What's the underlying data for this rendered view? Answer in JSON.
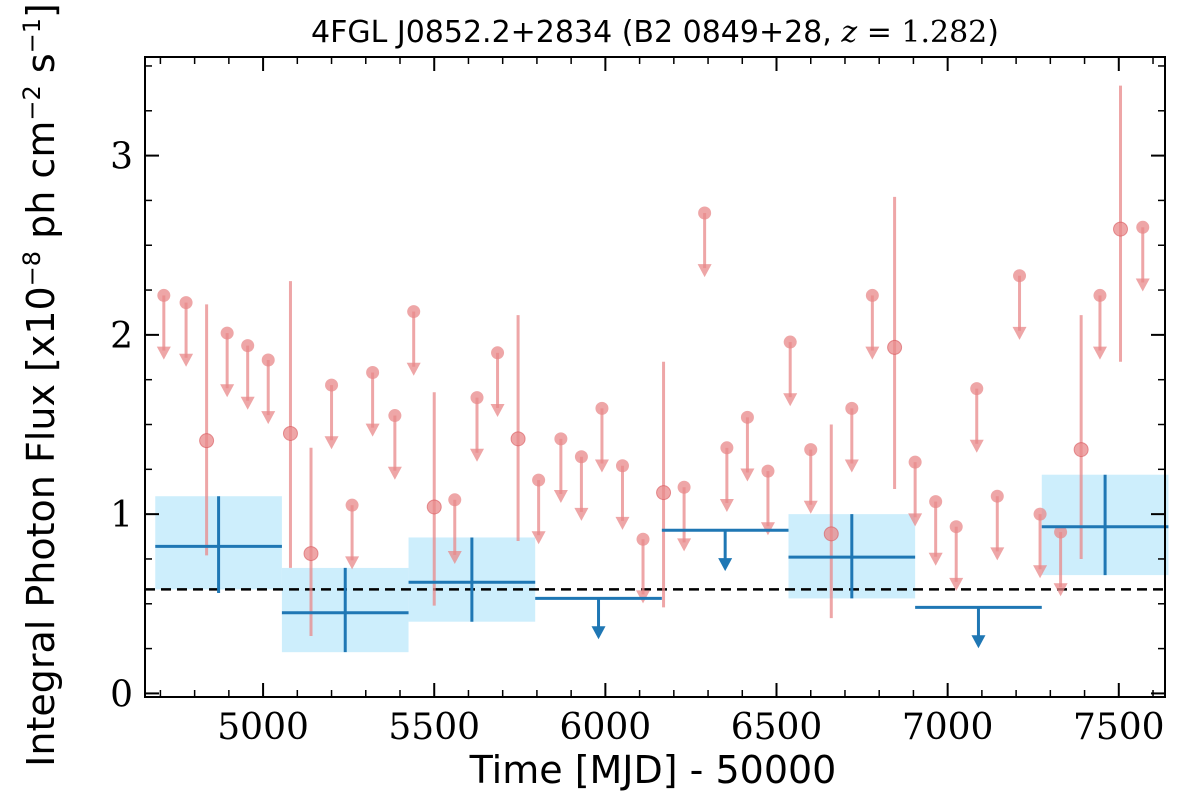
{
  "chart_data": {
    "type": "scatter",
    "title": "4FGL J0852.2+2834 (B2 0849+28, z = 1.282)",
    "title_parts": {
      "prefix": "4FGL J0852.2+2834 (B2 0849+28, ",
      "z_symbol": "z",
      "z_value": " = 1.282",
      "suffix": ")"
    },
    "xlabel": "Time [MJD] - 50000",
    "ylabel": "Integral Photon Flux [x10",
    "ylabel_exponent": "−8",
    "ylabel_mid": " ph cm",
    "ylabel_exponent2": "−2",
    "ylabel_end": " s",
    "ylabel_exponent3": "−1",
    "ylabel_close": "]",
    "xlim": [
      4655,
      7635
    ],
    "ylim": [
      -0.02,
      3.55
    ],
    "x_ticks": [
      5000,
      5500,
      6000,
      6500,
      7000,
      7500
    ],
    "x_minor_step": 100,
    "y_ticks": [
      0,
      1,
      2,
      3
    ],
    "y_minor_step": 0.25,
    "grid": false,
    "reference_line": 0.58,
    "colors": {
      "fine_bins": "#e8888a",
      "coarse_bins": "#1f77b4",
      "coarse_band": "#cdeefc",
      "reference_line": "#000000"
    },
    "series": [
      {
        "kind": "fine_bins_detections",
        "points": [
          {
            "x": 4835,
            "y": 1.41,
            "yerr_low": 0.77,
            "yerr_high": 2.17
          },
          {
            "x": 5080,
            "y": 1.45,
            "yerr_low": 0.7,
            "yerr_high": 2.3
          },
          {
            "x": 5140,
            "y": 0.78,
            "yerr_low": 0.32,
            "yerr_high": 1.37
          },
          {
            "x": 5500,
            "y": 1.04,
            "yerr_low": 0.49,
            "yerr_high": 1.68
          },
          {
            "x": 5745,
            "y": 1.42,
            "yerr_low": 0.85,
            "yerr_high": 2.11
          },
          {
            "x": 6170,
            "y": 1.12,
            "yerr_low": 0.48,
            "yerr_high": 1.85
          },
          {
            "x": 6660,
            "y": 0.89,
            "yerr_low": 0.42,
            "yerr_high": 1.5
          },
          {
            "x": 6845,
            "y": 1.93,
            "yerr_low": 1.14,
            "yerr_high": 2.77
          },
          {
            "x": 7390,
            "y": 1.36,
            "yerr_low": 0.75,
            "yerr_high": 2.11
          },
          {
            "x": 7505,
            "y": 2.59,
            "yerr_low": 1.85,
            "yerr_high": 3.39
          }
        ]
      },
      {
        "kind": "fine_bins_upper_limits",
        "points": [
          {
            "x": 4710,
            "y": 2.22
          },
          {
            "x": 4775,
            "y": 2.18
          },
          {
            "x": 4895,
            "y": 2.01
          },
          {
            "x": 4955,
            "y": 1.94
          },
          {
            "x": 5015,
            "y": 1.86
          },
          {
            "x": 5200,
            "y": 1.72
          },
          {
            "x": 5260,
            "y": 1.05
          },
          {
            "x": 5320,
            "y": 1.79
          },
          {
            "x": 5385,
            "y": 1.55
          },
          {
            "x": 5440,
            "y": 2.13
          },
          {
            "x": 5560,
            "y": 1.08
          },
          {
            "x": 5625,
            "y": 1.65
          },
          {
            "x": 5685,
            "y": 1.9
          },
          {
            "x": 5805,
            "y": 1.19
          },
          {
            "x": 5870,
            "y": 1.42
          },
          {
            "x": 5930,
            "y": 1.32
          },
          {
            "x": 5990,
            "y": 1.59
          },
          {
            "x": 6050,
            "y": 1.27
          },
          {
            "x": 6110,
            "y": 0.86
          },
          {
            "x": 6230,
            "y": 1.15
          },
          {
            "x": 6290,
            "y": 2.68
          },
          {
            "x": 6355,
            "y": 1.37
          },
          {
            "x": 6415,
            "y": 1.54
          },
          {
            "x": 6475,
            "y": 1.24
          },
          {
            "x": 6540,
            "y": 1.96
          },
          {
            "x": 6600,
            "y": 1.36
          },
          {
            "x": 6720,
            "y": 1.59
          },
          {
            "x": 6780,
            "y": 2.22
          },
          {
            "x": 6905,
            "y": 1.29
          },
          {
            "x": 6965,
            "y": 1.07
          },
          {
            "x": 7025,
            "y": 0.93
          },
          {
            "x": 7085,
            "y": 1.7
          },
          {
            "x": 7145,
            "y": 1.1
          },
          {
            "x": 7210,
            "y": 2.33
          },
          {
            "x": 7270,
            "y": 1.0
          },
          {
            "x": 7330,
            "y": 0.9
          },
          {
            "x": 7445,
            "y": 2.22
          },
          {
            "x": 7570,
            "y": 2.6
          }
        ]
      },
      {
        "kind": "coarse_bins_detections",
        "points": [
          {
            "x": 4870,
            "x_low": 4685,
            "x_high": 5055,
            "y": 0.82,
            "y_low": 0.56,
            "y_high": 1.1,
            "band_low": 0.58,
            "band_high": 1.1
          },
          {
            "x": 5240,
            "x_low": 5055,
            "x_high": 5425,
            "y": 0.45,
            "y_low": 0.23,
            "y_high": 0.7,
            "band_low": 0.23,
            "band_high": 0.7
          },
          {
            "x": 5610,
            "x_low": 5425,
            "x_high": 5795,
            "y": 0.62,
            "y_low": 0.4,
            "y_high": 0.87,
            "band_low": 0.4,
            "band_high": 0.87
          },
          {
            "x": 6720,
            "x_low": 6535,
            "x_high": 6905,
            "y": 0.76,
            "y_low": 0.53,
            "y_high": 1.0,
            "band_low": 0.53,
            "band_high": 1.0
          },
          {
            "x": 7460,
            "x_low": 7275,
            "x_high": 7645,
            "y": 0.93,
            "y_low": 0.66,
            "y_high": 1.22,
            "band_low": 0.66,
            "band_high": 1.22
          }
        ]
      },
      {
        "kind": "coarse_bins_upper_limits",
        "points": [
          {
            "x": 5980,
            "x_low": 5795,
            "x_high": 6165,
            "y": 0.53
          },
          {
            "x": 6350,
            "x_low": 6165,
            "x_high": 6535,
            "y": 0.91
          },
          {
            "x": 7090,
            "x_low": 6905,
            "x_high": 7275,
            "y": 0.48
          }
        ]
      }
    ]
  }
}
